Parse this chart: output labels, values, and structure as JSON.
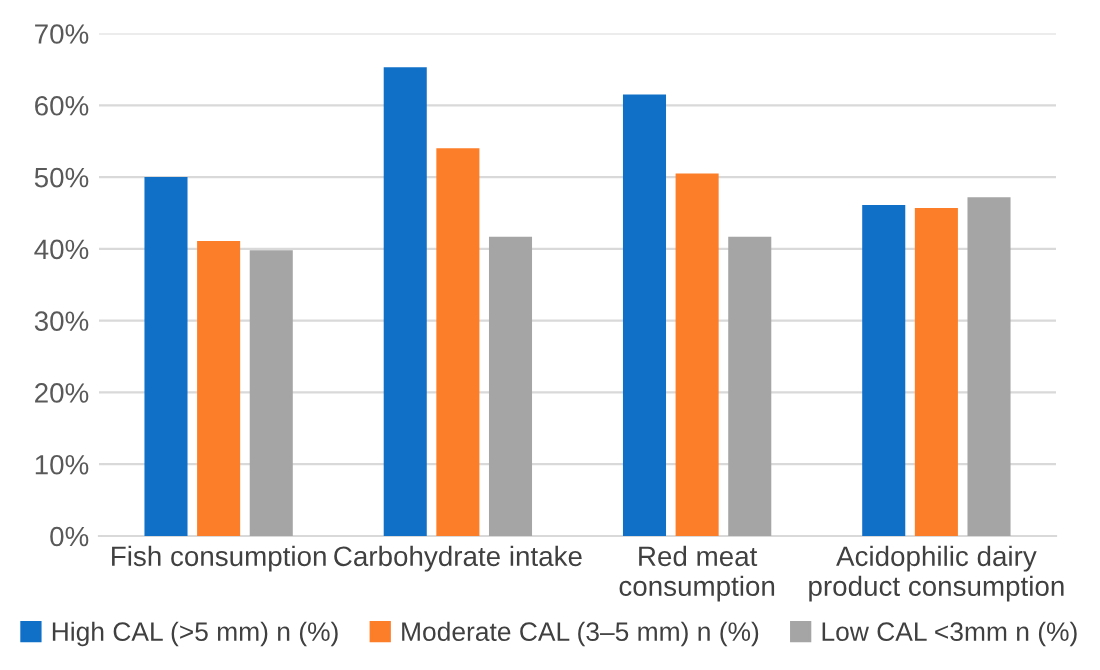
{
  "chart_data": {
    "type": "bar",
    "categories": [
      "Fish consumption",
      "Carbohydrate intake",
      "Red meat consumption",
      "Acidophilic dairy product consumption"
    ],
    "series": [
      {
        "name": "High CAL (>5 mm) n (%)",
        "color": "#1070c8",
        "values": [
          50.0,
          65.3,
          61.5,
          46.1
        ]
      },
      {
        "name": "Moderate CAL (3–5 mm) n (%)",
        "color": "#fd7e28",
        "values": [
          41.1,
          54.0,
          50.5,
          45.7
        ]
      },
      {
        "name": "Low CAL <3mm n (%)",
        "color": "#a5a5a5",
        "values": [
          39.8,
          41.7,
          41.7,
          47.2
        ]
      }
    ],
    "ylim": [
      0,
      70
    ],
    "yticks": [
      {
        "value": 0,
        "label": "0%"
      },
      {
        "value": 10,
        "label": "10%"
      },
      {
        "value": 20,
        "label": "20%"
      },
      {
        "value": 30,
        "label": "30%"
      },
      {
        "value": 40,
        "label": "40%"
      },
      {
        "value": 50,
        "label": "50%"
      },
      {
        "value": 60,
        "label": "60%"
      },
      {
        "value": 70,
        "label": "70%"
      }
    ],
    "grid": "y",
    "legend": "bottom"
  }
}
